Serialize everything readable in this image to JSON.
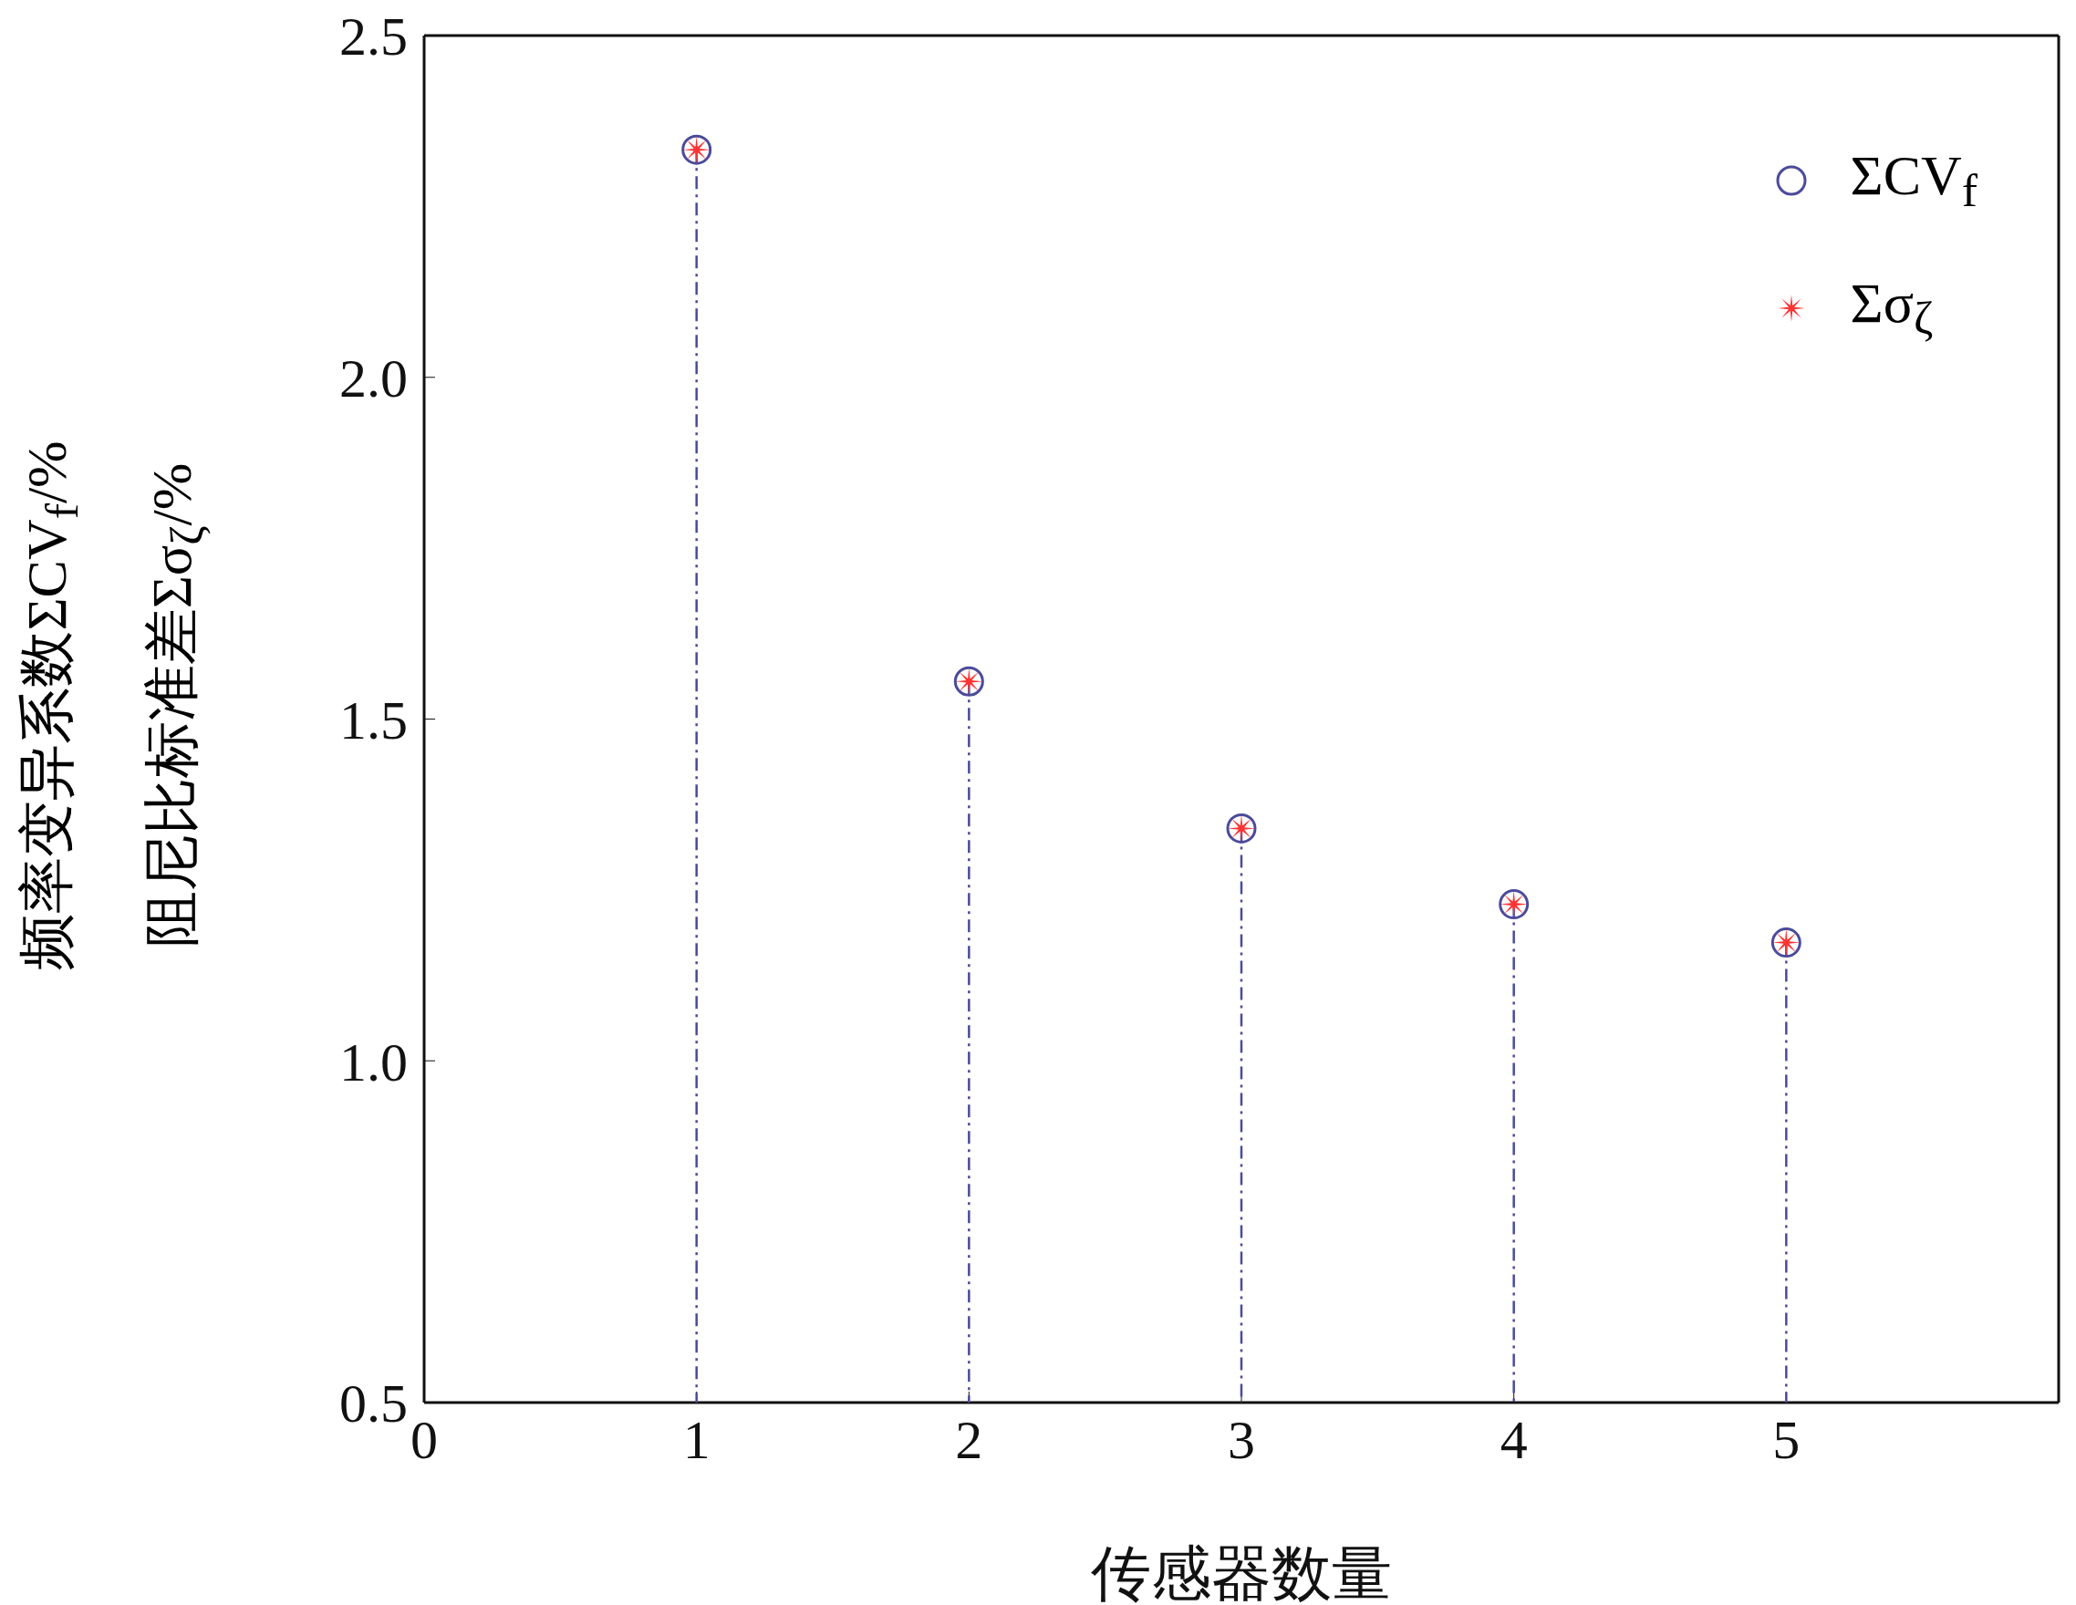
{
  "chart_data": {
    "type": "lollipop",
    "xlabel": "传感器数量",
    "ylabel": "频率变异系数ΣCV$_{f}$/%\n阻尼比标准差Σσ$_{ζ}$/%",
    "x": [
      1,
      2,
      3,
      4,
      5
    ],
    "series": [
      {
        "name": "ΣCV$_{f}$",
        "color": "#4b4b9b",
        "marker": "circle",
        "line_style": "dashed",
        "values": [
          2.333,
          1.555,
          1.34,
          1.229,
          1.173
        ]
      },
      {
        "name": "Σσ$_{ζ}$",
        "type": "scatter",
        "color": "#ff3333",
        "marker": "star",
        "values": [
          2.333,
          1.555,
          1.34,
          1.229,
          1.173
        ]
      }
    ],
    "xlim": [
      0,
      6
    ],
    "xticks": [
      0,
      1,
      2,
      3,
      4,
      5
    ],
    "ylim": [
      0.5,
      2.5
    ],
    "yticks": [
      {
        "value": 0.5,
        "label": "0.5"
      },
      {
        "value": 1.0,
        "label": "1.0"
      },
      {
        "value": 1.5,
        "label": "1.5"
      },
      {
        "value": 2.0,
        "label": "2.0"
      },
      {
        "value": 2.5,
        "label": "2.5"
      }
    ],
    "legend": "top right"
  }
}
